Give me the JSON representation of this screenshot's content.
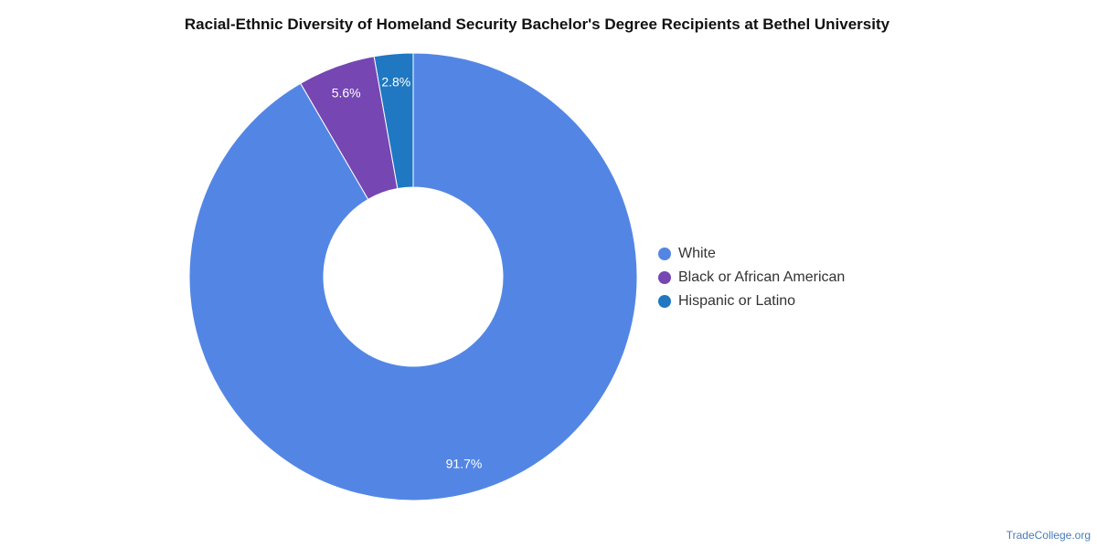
{
  "chart_data": {
    "type": "pie",
    "title": "Racial-Ethnic Diversity of Homeland Security Bachelor's Degree Recipients at Bethel University",
    "donut": true,
    "categories": [
      "White",
      "Black or African American",
      "Hispanic or Latino"
    ],
    "values": [
      91.7,
      5.6,
      2.8
    ],
    "data_labels": [
      "91.7%",
      "5.6%",
      "2.8%"
    ],
    "colors": [
      "#5386e4",
      "#7646b3",
      "#1f78c1"
    ],
    "legend_position": "right"
  },
  "footer": {
    "source": "TradeCollege.org"
  }
}
